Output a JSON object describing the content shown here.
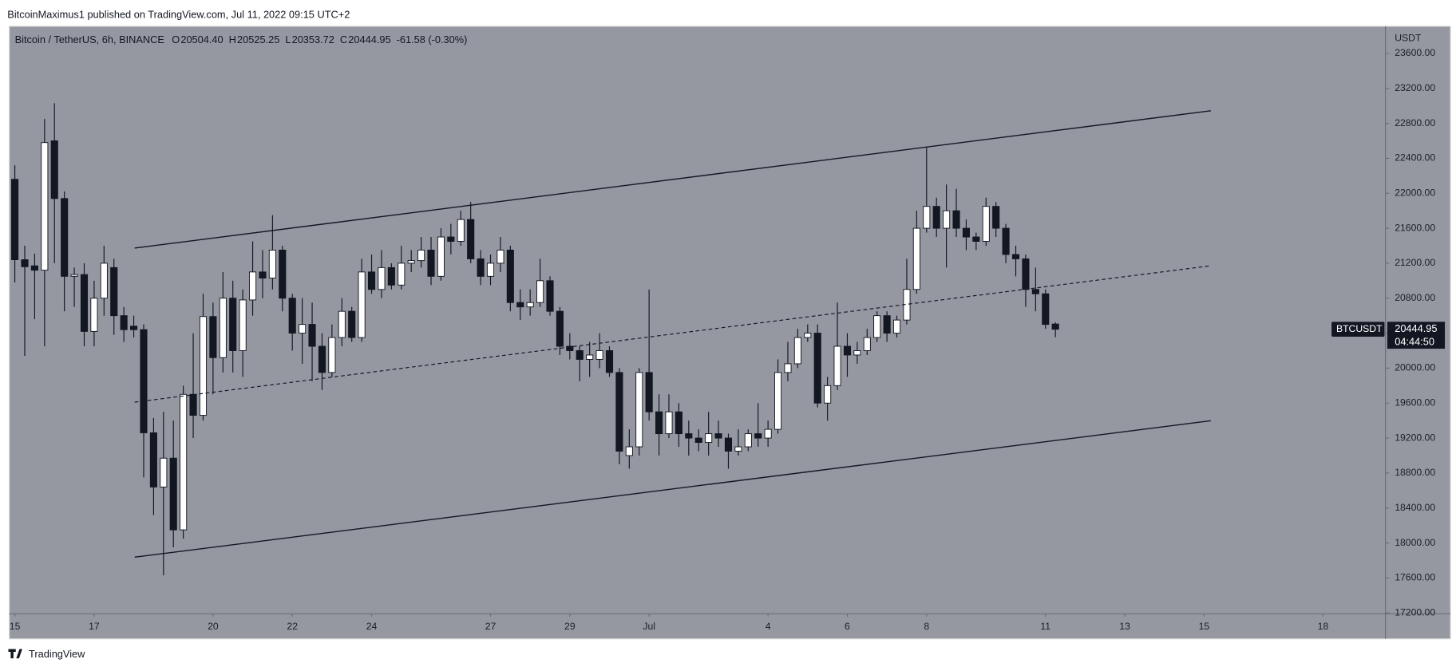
{
  "header": "BitcoinMaximus1 published on TradingView.com, Jul 11, 2022 09:15 UTC+2",
  "brand": "TradingView",
  "chart_data": {
    "type": "candlestick",
    "symbol": "Bitcoin / TetherUS, 6h, BINANCE",
    "legend": [
      {
        "label": "O",
        "value": "20504.40"
      },
      {
        "label": "H",
        "value": "20525.25"
      },
      {
        "label": "L",
        "value": "20353.72"
      },
      {
        "label": "C",
        "value": "20444.95"
      }
    ],
    "change": "-61.58 (-0.30%)",
    "y_axis_label": "USDT",
    "ticker_tag": "BTCUSDT",
    "last_price_label": "20444.95",
    "countdown": "04:44:50",
    "up_color": "#ffffff",
    "down_color": "#131722",
    "background": "#9598a1",
    "xlim": [
      -0.56,
      138.3
    ],
    "xticks": [
      {
        "value": 0,
        "label": "15"
      },
      {
        "value": 8,
        "label": "17"
      },
      {
        "value": 20,
        "label": "20"
      },
      {
        "value": 28,
        "label": "22"
      },
      {
        "value": 36,
        "label": "24"
      },
      {
        "value": 48,
        "label": "27"
      },
      {
        "value": 56,
        "label": "29"
      },
      {
        "value": 64,
        "label": "Jul"
      },
      {
        "value": 76,
        "label": "4"
      },
      {
        "value": 84,
        "label": "6"
      },
      {
        "value": 92,
        "label": "8"
      },
      {
        "value": 104,
        "label": "11"
      },
      {
        "value": 112,
        "label": "13"
      },
      {
        "value": 120,
        "label": "15"
      },
      {
        "value": 132,
        "label": "18"
      }
    ],
    "ylim": [
      17190,
      23910
    ],
    "yticks": [
      {
        "value": 17200,
        "label": "17200.00"
      },
      {
        "value": 17600,
        "label": "17600.00"
      },
      {
        "value": 18000,
        "label": "18000.00"
      },
      {
        "value": 18400,
        "label": "18400.00"
      },
      {
        "value": 18800,
        "label": "18800.00"
      },
      {
        "value": 19200,
        "label": "19200.00"
      },
      {
        "value": 19600,
        "label": "19600.00"
      },
      {
        "value": 20000,
        "label": "20000.00"
      },
      {
        "value": 20400,
        "label": "20400.00"
      },
      {
        "value": 20800,
        "label": "20800.00"
      },
      {
        "value": 21200,
        "label": "21200.00"
      },
      {
        "value": 21600,
        "label": "21600.00"
      },
      {
        "value": 22000,
        "label": "22000.00"
      },
      {
        "value": 22400,
        "label": "22400.00"
      },
      {
        "value": 22800,
        "label": "22800.00"
      },
      {
        "value": 23200,
        "label": "23200.00"
      },
      {
        "value": 23600,
        "label": "23600.00"
      }
    ],
    "open": [
      22160,
      21240,
      21170,
      21120,
      22600,
      21940,
      21050,
      21070,
      20420,
      20800,
      21150,
      20600,
      20480,
      20440,
      19260,
      18640,
      18970,
      18150,
      19700,
      19460,
      20590,
      20120,
      20800,
      20200,
      20780,
      21100,
      21030,
      21350,
      20800,
      20400,
      20500,
      20250,
      19950,
      20350,
      20650,
      20350,
      21100,
      20900,
      21150,
      20950,
      21200,
      21230,
      21350,
      21050,
      21500,
      21450,
      21700,
      21250,
      21050,
      21200,
      21350,
      20750,
      20700,
      20750,
      21000,
      20650,
      20250,
      20200,
      20100,
      20100,
      20200,
      19950,
      19000,
      19100,
      19950,
      19500,
      19250,
      19500,
      19250,
      19200,
      19150,
      19250,
      19200,
      19050,
      19100,
      19250,
      19200,
      19300,
      19950,
      20050,
      20350,
      20400,
      19600,
      19800,
      20250,
      20150,
      20200,
      20350,
      20600,
      20400,
      20550,
      20900,
      21600,
      21850,
      21600,
      21800,
      21600,
      21500,
      21450,
      21850,
      21600,
      21300,
      21250,
      20900,
      20850,
      20504.4
    ],
    "high": [
      22320,
      21400,
      21310,
      22850,
      23030,
      22020,
      21150,
      21200,
      21000,
      21400,
      21250,
      20700,
      20600,
      20500,
      19430,
      19500,
      19400,
      19800,
      20400,
      20850,
      20750,
      21100,
      21000,
      20900,
      21450,
      21350,
      21750,
      21400,
      20850,
      20800,
      20750,
      20400,
      20500,
      20800,
      20700,
      21250,
      21300,
      21350,
      21200,
      21400,
      21350,
      21500,
      21500,
      21600,
      21650,
      21800,
      21900,
      21350,
      21300,
      21500,
      21400,
      20900,
      20900,
      21250,
      21050,
      20700,
      20400,
      20250,
      20300,
      20400,
      20250,
      20000,
      19300,
      20000,
      20900,
      19700,
      19700,
      19600,
      19400,
      19300,
      19500,
      19400,
      19250,
      19300,
      19300,
      19600,
      19400,
      20100,
      20300,
      20450,
      20500,
      20500,
      19900,
      20750,
      20400,
      20300,
      20450,
      20650,
      20650,
      20600,
      21250,
      21800,
      22530,
      21950,
      22100,
      22050,
      21700,
      21550,
      21950,
      21900,
      21650,
      21400,
      21300,
      21150,
      20900,
      20525.25
    ],
    "low": [
      20980,
      20140,
      20560,
      20250,
      21200,
      20650,
      20700,
      20250,
      20250,
      20600,
      20380,
      20300,
      20350,
      18750,
      18320,
      17630,
      17950,
      18050,
      19200,
      19400,
      19700,
      19950,
      19950,
      19900,
      20600,
      20800,
      20900,
      20650,
      20200,
      20050,
      19850,
      19750,
      19900,
      20250,
      20300,
      20300,
      20850,
      20800,
      20900,
      20900,
      21100,
      21150,
      20950,
      21000,
      21300,
      21400,
      21200,
      20950,
      20950,
      21100,
      20650,
      20550,
      20600,
      20700,
      20600,
      20150,
      20100,
      19850,
      19900,
      20000,
      19900,
      18900,
      18850,
      19000,
      19400,
      19000,
      19200,
      19100,
      19000,
      19050,
      19000,
      19100,
      18850,
      19000,
      19050,
      19100,
      19100,
      19250,
      19850,
      20000,
      20300,
      19550,
      19400,
      19750,
      19900,
      20050,
      20150,
      20300,
      20300,
      20350,
      20500,
      20850,
      21550,
      21500,
      21150,
      21500,
      21350,
      21350,
      21400,
      21500,
      21200,
      21050,
      20700,
      20650,
      20450,
      20353.72
    ],
    "close": [
      21240,
      21160,
      21120,
      22580,
      21940,
      21050,
      21070,
      20420,
      20800,
      21200,
      20600,
      20440,
      20440,
      19260,
      18640,
      18970,
      18150,
      19700,
      19460,
      20590,
      20120,
      20800,
      20200,
      20780,
      21100,
      21030,
      21350,
      20800,
      20400,
      20500,
      20250,
      19950,
      20350,
      20650,
      20350,
      21100,
      20900,
      21150,
      20950,
      21200,
      21230,
      21350,
      21050,
      21500,
      21450,
      21700,
      21250,
      21050,
      21200,
      21350,
      20750,
      20700,
      20750,
      21000,
      20650,
      20250,
      20200,
      20100,
      20150,
      20200,
      19950,
      19050,
      19100,
      19950,
      19500,
      19250,
      19500,
      19250,
      19200,
      19150,
      19250,
      19200,
      19050,
      19100,
      19250,
      19200,
      19300,
      19950,
      20050,
      20350,
      20400,
      19600,
      19800,
      20250,
      20150,
      20200,
      20350,
      20600,
      20400,
      20550,
      20900,
      21600,
      21850,
      21600,
      21800,
      21600,
      21500,
      21450,
      21850,
      21600,
      21300,
      21250,
      20900,
      20850,
      20500,
      20444.95
    ]
  }
}
